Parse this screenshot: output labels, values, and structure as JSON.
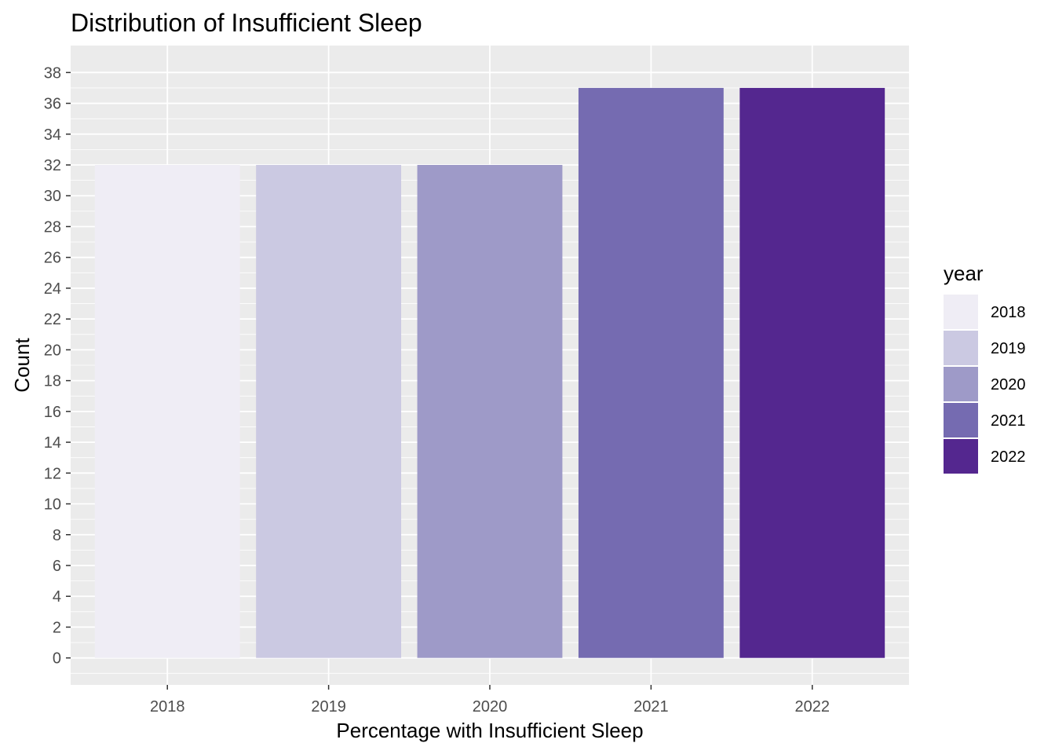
{
  "chart_data": {
    "type": "bar",
    "title": "Distribution of Insufficient Sleep",
    "xlabel": "Percentage with Insufficient Sleep",
    "ylabel": "Count",
    "categories": [
      "2018",
      "2019",
      "2020",
      "2021",
      "2022"
    ],
    "values": [
      32,
      32,
      32,
      37,
      37
    ],
    "ylim": [
      -1.75,
      39.75
    ],
    "yticks": [
      0,
      2,
      4,
      6,
      8,
      10,
      12,
      14,
      16,
      18,
      20,
      22,
      24,
      26,
      28,
      30,
      32,
      34,
      36,
      38
    ],
    "grid": true,
    "legend": {
      "title": "year",
      "position": "right",
      "entries": [
        "2018",
        "2019",
        "2020",
        "2021",
        "2022"
      ]
    },
    "colors": [
      "#efedf5",
      "#cbc9e2",
      "#9e9ac8",
      "#756bb1",
      "#54278f"
    ],
    "panel_background": "#ebebeb",
    "grid_color": "#ffffff"
  }
}
